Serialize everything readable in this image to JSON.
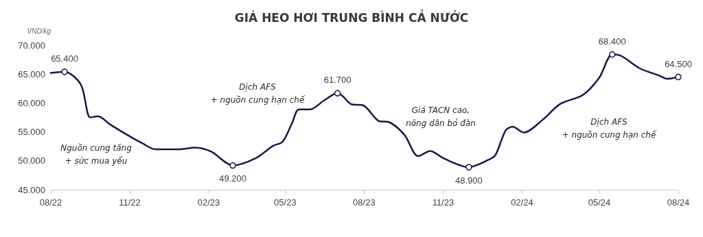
{
  "chart_data": {
    "type": "line",
    "title": "GIÁ HEO HƠI TRUNG BÌNH CẢ NƯỚC",
    "ylabel": "VND/kg",
    "x": [
      "2022-08-01",
      "2022-08-17",
      "2022-09-05",
      "2022-09-16",
      "2022-09-25",
      "2022-10-09",
      "2022-10-30",
      "2022-11-16",
      "2022-12-01",
      "2022-12-28",
      "2023-01-16",
      "2023-02-04",
      "2023-03-01",
      "2023-03-27",
      "2023-04-17",
      "2023-04-28",
      "2023-05-09",
      "2023-05-17",
      "2023-05-30",
      "2023-06-15",
      "2023-07-01",
      "2023-07-07",
      "2023-07-17",
      "2023-07-31",
      "2023-08-18",
      "2023-08-30",
      "2023-09-17",
      "2023-10-03",
      "2023-10-17",
      "2023-11-02",
      "2023-12-01",
      "2023-12-24",
      "2024-01-01",
      "2024-01-13",
      "2024-01-21",
      "2024-02-03",
      "2024-02-25",
      "2024-03-16",
      "2024-04-12",
      "2024-05-01",
      "2024-05-16",
      "2024-05-24",
      "2024-06-17",
      "2024-07-09",
      "2024-07-19",
      "2024-08-01"
    ],
    "series": [
      {
        "color": "#14194a",
        "values": [
          65200,
          65400,
          63200,
          57500,
          57700,
          56300,
          54400,
          53000,
          52000,
          52000,
          52300,
          51600,
          49200,
          50400,
          52600,
          53300,
          56500,
          58900,
          58900,
          60400,
          61700,
          61200,
          59800,
          59600,
          56900,
          56700,
          54500,
          50800,
          51700,
          50400,
          48900,
          50200,
          51000,
          55300,
          55900,
          54900,
          57100,
          59800,
          61400,
          64400,
          68400,
          68300,
          66000,
          64800,
          64200,
          64500
        ],
        "value_labels": [
          null,
          "65.400",
          null,
          null,
          null,
          null,
          null,
          null,
          null,
          null,
          null,
          null,
          "49.200",
          null,
          null,
          null,
          null,
          null,
          null,
          null,
          "61.700",
          null,
          null,
          null,
          null,
          null,
          null,
          null,
          null,
          null,
          "48.900",
          null,
          null,
          null,
          null,
          null,
          null,
          null,
          null,
          null,
          "68.400",
          null,
          null,
          null,
          null,
          "64.500"
        ]
      }
    ],
    "grid": false,
    "xlim": [
      "2022-08-01",
      "2024-08-01"
    ],
    "xticks": [
      {
        "value": "2022-08-01",
        "label": "08/22"
      },
      {
        "value": "2022-11-01",
        "label": "11/22"
      },
      {
        "value": "2023-02-01",
        "label": "02/23"
      },
      {
        "value": "2023-05-01",
        "label": "05/23"
      },
      {
        "value": "2023-08-01",
        "label": "08/23"
      },
      {
        "value": "2023-11-01",
        "label": "11/23"
      },
      {
        "value": "2024-02-01",
        "label": "02/24"
      },
      {
        "value": "2024-05-01",
        "label": "05/24"
      },
      {
        "value": "2024-08-01",
        "label": "08/24"
      }
    ],
    "ylim": [
      45000,
      70000
    ],
    "yticks": [
      {
        "value": 45000,
        "label": "45.000"
      },
      {
        "value": 50000,
        "label": "50.000"
      },
      {
        "value": 55000,
        "label": "55.000"
      },
      {
        "value": 60000,
        "label": "60.000"
      },
      {
        "value": 65000,
        "label": "65.000"
      },
      {
        "value": 70000,
        "label": "70.000"
      }
    ],
    "annotations": [
      "Nguồn cung tăng\n+ sức mua yếu",
      "Dịch AFS\n+ nguồn cung hạn chế",
      "Giá TACN cao,\nnông dân bỏ đàn",
      "Dịch AFS\n+ nguồn cung hạn chế"
    ]
  }
}
